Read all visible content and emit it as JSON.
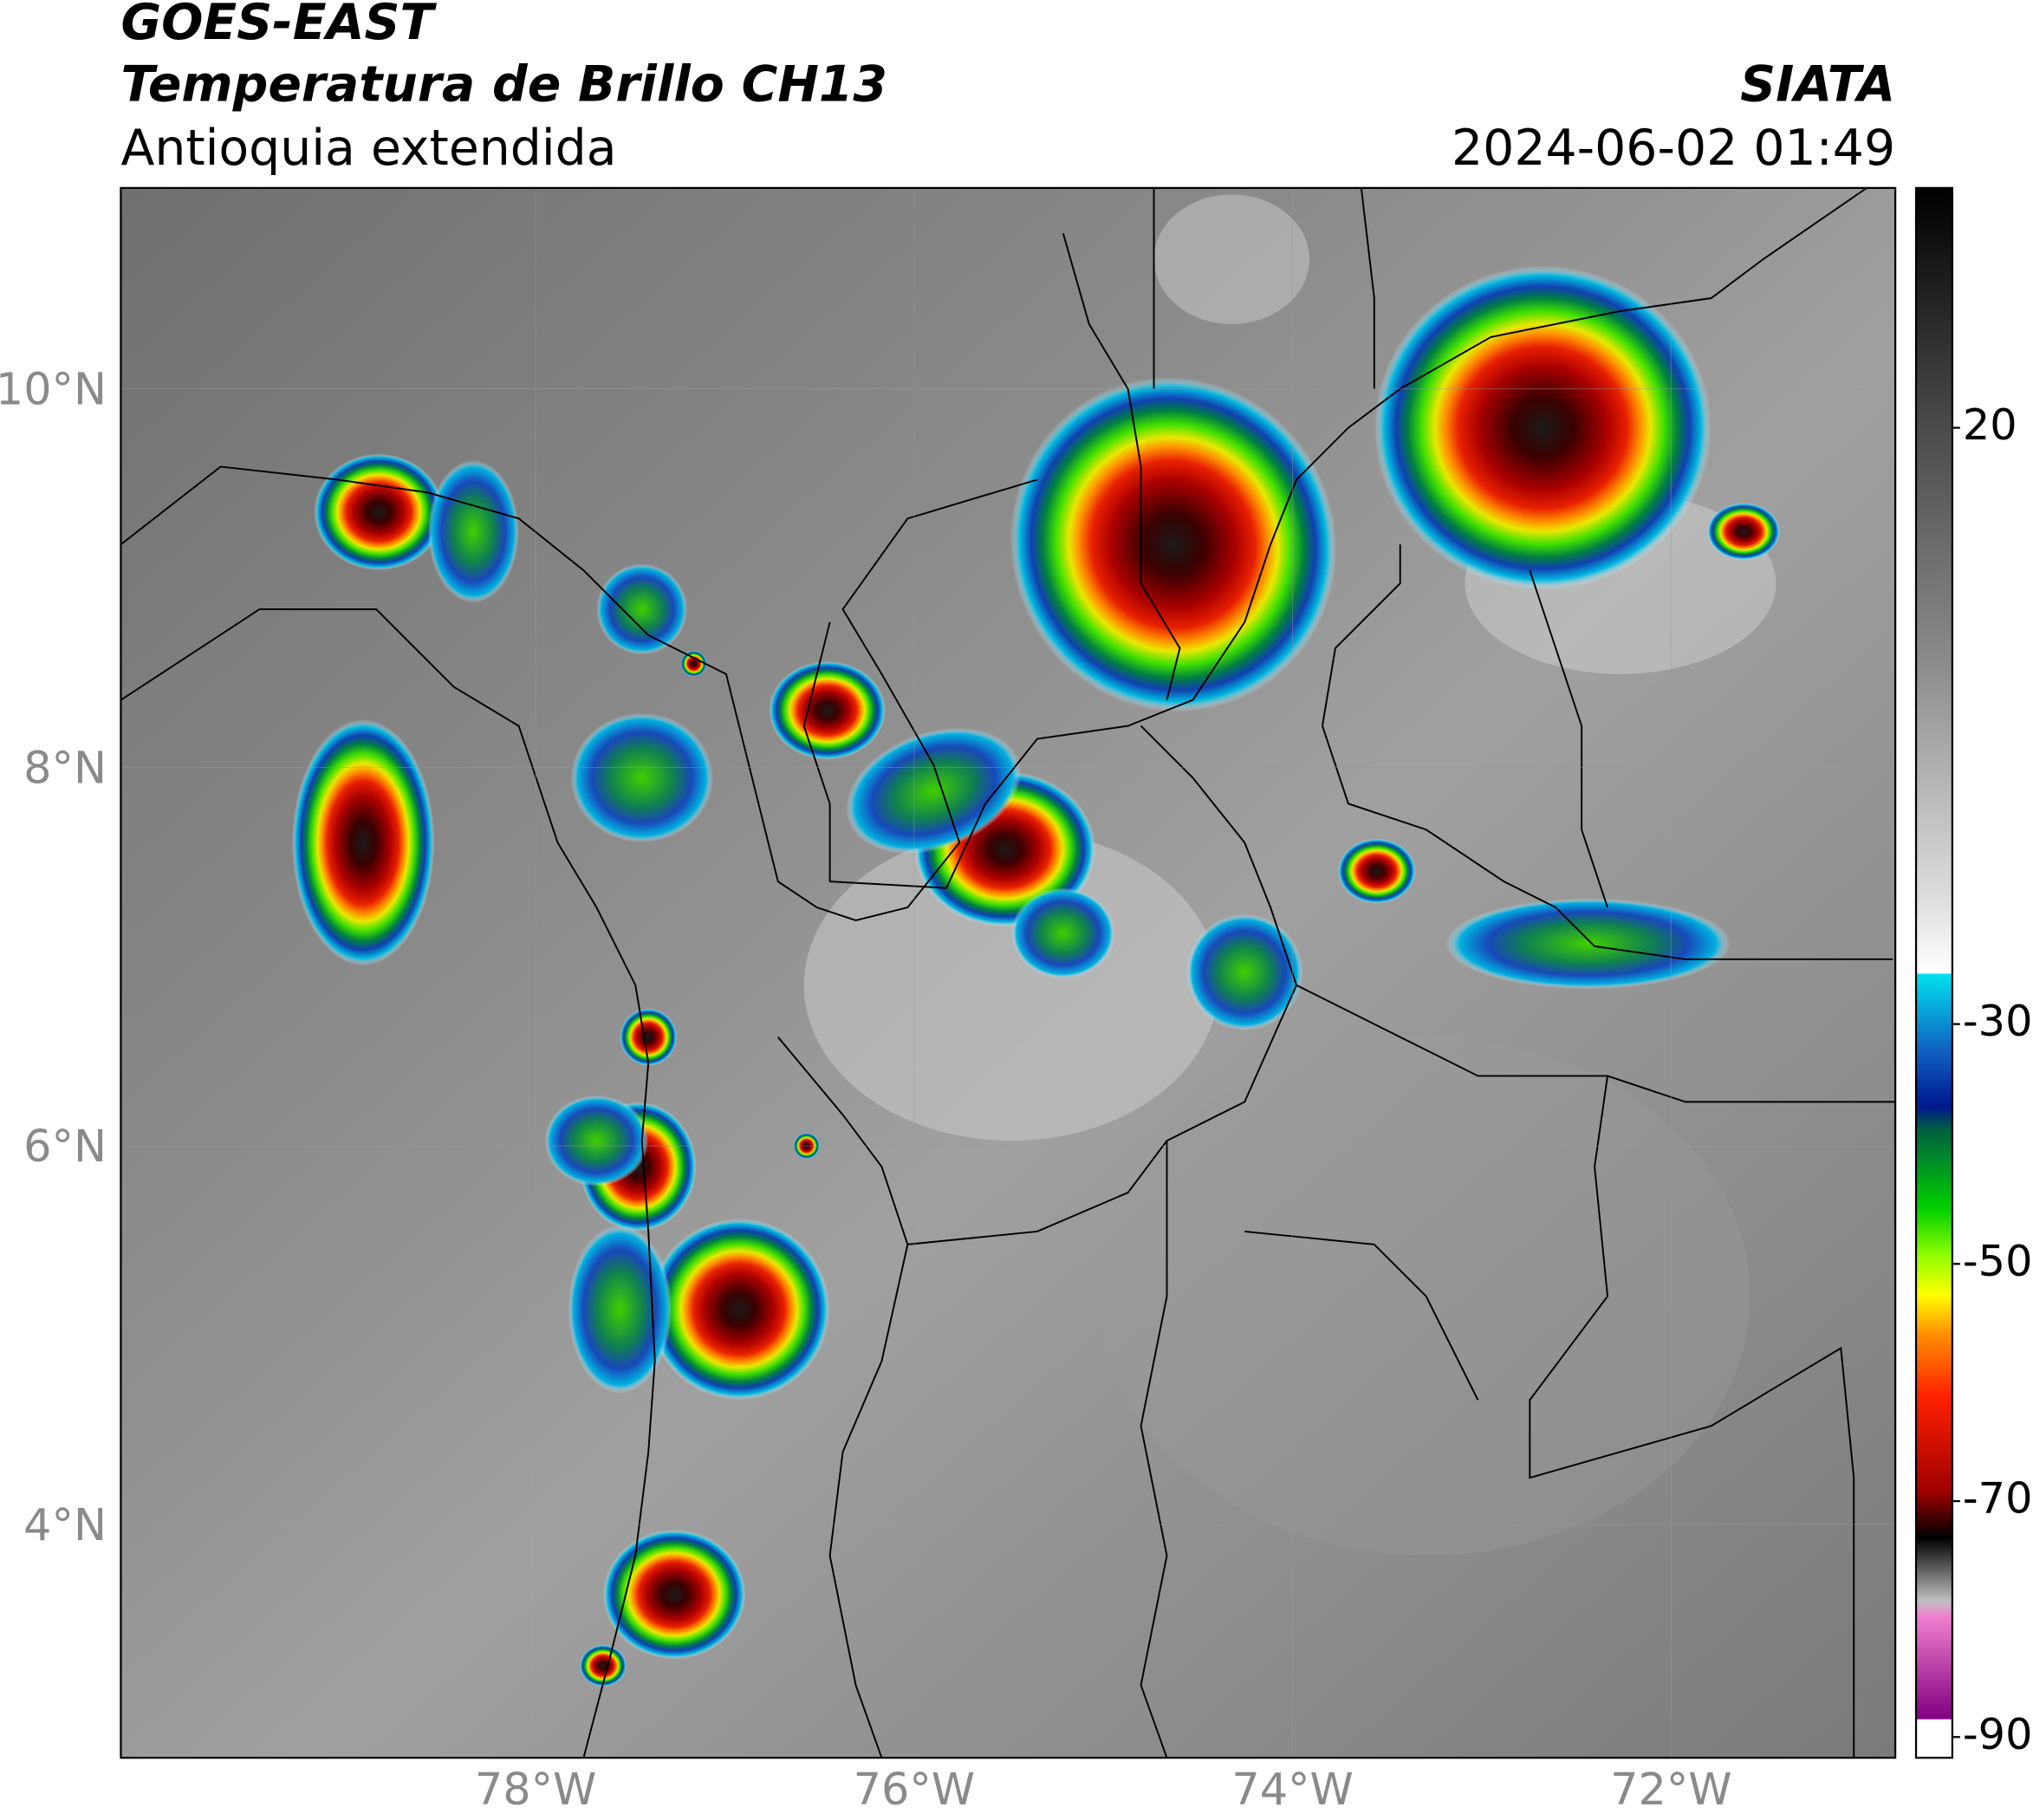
{
  "header": {
    "title": "GOES-EAST",
    "subtitle": "Temperatura de Brillo CH13",
    "region": "Antioquia extendida",
    "source": "SIATA",
    "datetime": "2024-06-02 01:49"
  },
  "map": {
    "lat_ticks": [
      "10°N",
      "8°N",
      "6°N",
      "4°N"
    ],
    "lon_ticks": [
      "78°W",
      "76°W",
      "74°W",
      "72°W"
    ]
  },
  "colorbar": {
    "ticks": [
      20,
      -30,
      -50,
      -70,
      -90
    ]
  }
}
